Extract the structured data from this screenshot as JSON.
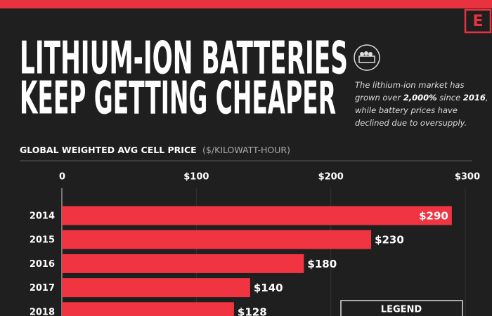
{
  "logo": "E",
  "title": [
    "LITHIUM-ION BATTERIES",
    "KEEP GETTING CHEAPER"
  ],
  "subtitle": [
    [
      {
        "text": "The lithium-ion market has",
        "bold": false
      }
    ],
    [
      {
        "text": "grown over ",
        "bold": false
      },
      {
        "text": "2,000%",
        "bold": true
      },
      {
        "text": " since ",
        "bold": false
      },
      {
        "text": "2016",
        "bold": true
      },
      {
        "text": ",",
        "bold": false
      }
    ],
    [
      {
        "text": "while battery prices have",
        "bold": false
      }
    ],
    [
      {
        "text": "declined due to oversupply.",
        "bold": false
      }
    ]
  ],
  "chart_data": {
    "type": "bar",
    "orientation": "horizontal",
    "axis_label": "GLOBAL WEIGHTED AVG CELL PRICE",
    "axis_unit": "($/KILOWATT-HOUR)",
    "categories": [
      "2014",
      "2015",
      "2016",
      "2017",
      "2018"
    ],
    "values": [
      290,
      230,
      180,
      140,
      128
    ],
    "value_labels": [
      "$290",
      "$230",
      "$180",
      "$140",
      "$128"
    ],
    "color": "#f03442",
    "xlim": [
      0,
      300
    ],
    "xticks": [
      0,
      {
        "value": 100,
        "label": "$100"
      },
      {
        "value": 200,
        "label": "$200"
      },
      {
        "value": 300,
        "label": "$300"
      }
    ],
    "grid": true,
    "legend_title": "LEGEND"
  }
}
